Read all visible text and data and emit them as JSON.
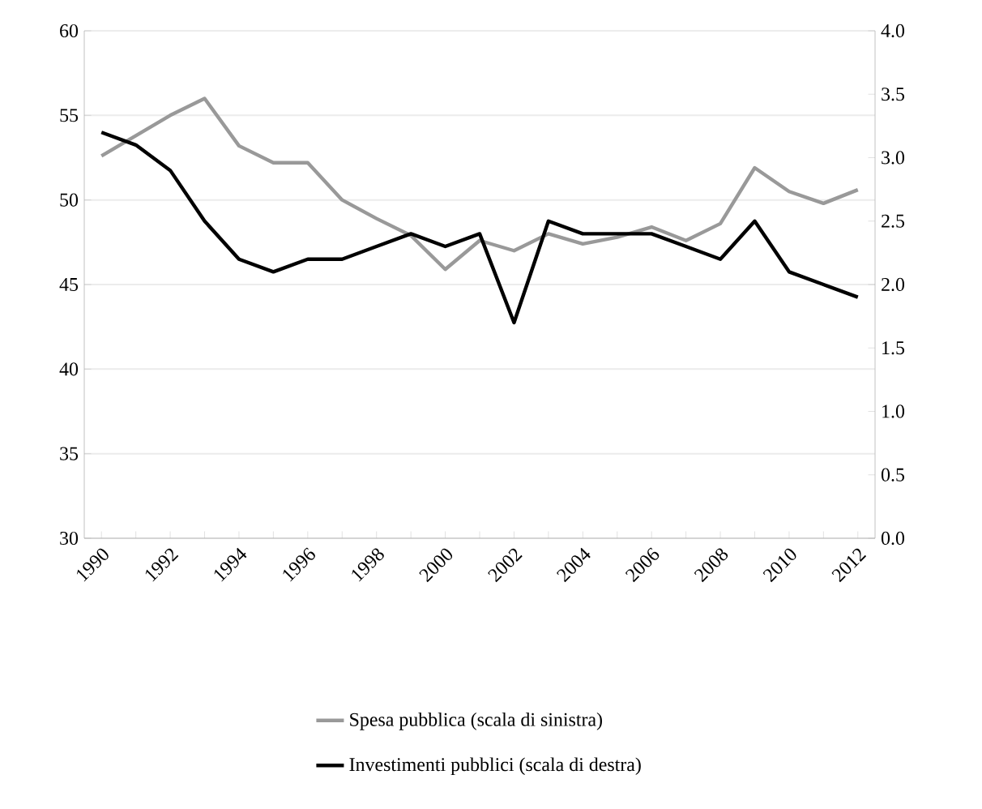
{
  "chart_data": {
    "type": "line",
    "categories": [
      "1990",
      null,
      "1992",
      null,
      "1994",
      null,
      "1996",
      null,
      "1998",
      null,
      "2000",
      null,
      "2002",
      null,
      "2004",
      null,
      "2006",
      null,
      "2008",
      null,
      "2010",
      null,
      "2012"
    ],
    "series": [
      {
        "name": "Spesa pubblica (scala di sinistra)",
        "color": "#999999",
        "values": [
          52.6,
          53.8,
          55.0,
          56.0,
          53.2,
          52.2,
          52.2,
          50.0,
          48.9,
          47.9,
          45.9,
          47.6,
          47.0,
          48.0,
          47.4,
          47.8,
          48.4,
          47.6,
          48.6,
          51.9,
          50.5,
          49.8,
          50.6
        ]
      },
      {
        "name": "Investimenti pubblici (scala di destra)",
        "color": "#000000",
        "axis": "y2",
        "values": [
          3.2,
          3.1,
          2.9,
          2.5,
          2.2,
          2.1,
          2.2,
          2.2,
          2.3,
          2.4,
          2.3,
          2.4,
          1.7,
          2.5,
          2.4,
          2.4,
          2.4,
          2.3,
          2.2,
          2.5,
          2.1,
          2.0,
          1.9
        ]
      }
    ],
    "ylim": [
      30,
      60
    ],
    "yticks": [
      30,
      35,
      40,
      45,
      50,
      55,
      60
    ],
    "y2lim": [
      0,
      4
    ],
    "y2ticks": [
      {
        "value": 0,
        "label": "0.0"
      },
      {
        "value": 0.5,
        "label": "0.5"
      },
      {
        "value": 1,
        "label": "1.0"
      },
      {
        "value": 1.5,
        "label": "1.5"
      },
      {
        "value": 2,
        "label": "2.0"
      },
      {
        "value": 2.5,
        "label": "2.5"
      },
      {
        "value": 3,
        "label": "3.0"
      },
      {
        "value": 3.5,
        "label": "3.5"
      },
      {
        "value": 4,
        "label": "4.0"
      }
    ],
    "grid": "y",
    "legend": "bottom",
    "marker": "none",
    "line_style": "solid"
  }
}
